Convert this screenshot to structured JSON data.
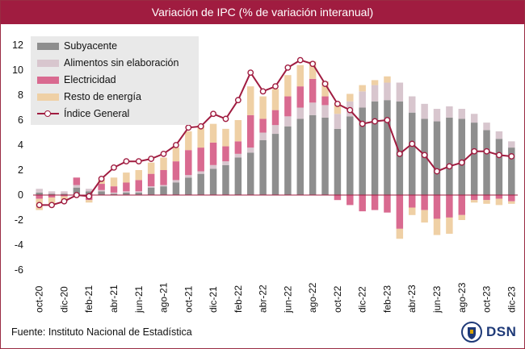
{
  "title": "Variación de IPC (% de variación interanual)",
  "source": "Fuente: Instituto Nacional de Estadística",
  "logo_text": "DSN",
  "colors": {
    "subyacente": "#8e8e8e",
    "alimentos": "#d8c6ce",
    "electricidad": "#d96a90",
    "energia": "#efd0a5",
    "indice": "#a01c40"
  },
  "chart_data": {
    "type": "bar",
    "stacked": true,
    "ylim": [
      -6,
      12
    ],
    "yticks": [
      -6,
      -4,
      -2,
      0,
      2,
      4,
      6,
      8,
      10,
      12
    ],
    "grid": false,
    "legend_position": "top-left",
    "categories": [
      "oct-20",
      "nov-20",
      "dic-20",
      "ene-21",
      "feb-21",
      "mar-21",
      "abr-21",
      "may-21",
      "jun-21",
      "jul-21",
      "ago-21",
      "sep-21",
      "oct-21",
      "nov-21",
      "dic-21",
      "ene-22",
      "feb-22",
      "mar-22",
      "abr-22",
      "may-22",
      "jun-22",
      "jul-22",
      "ago-22",
      "sep-22",
      "oct-22",
      "nov-22",
      "dic-22",
      "ene-23",
      "feb-23",
      "mar-23",
      "abr-23",
      "may-23",
      "jun-23",
      "jul-23",
      "ago-23",
      "sep-23",
      "oct-23",
      "nov-23",
      "dic-23"
    ],
    "xtick_labels": [
      "oct-20",
      "dic-20",
      "feb-21",
      "abr-21",
      "jun-21",
      "ago-21",
      "oct-21",
      "dic-21",
      "feb-22",
      "abr-22",
      "jun-22",
      "ago-22",
      "oct-22",
      "dic-22",
      "feb-23",
      "abr-23",
      "jun-23",
      "ago-23",
      "oct-23",
      "dic-23"
    ],
    "series": [
      {
        "name": "Subyacente",
        "key": "subyacente",
        "values": [
          0.2,
          0.1,
          0.1,
          0.6,
          0.3,
          0.3,
          0.1,
          0.2,
          0.2,
          0.6,
          0.7,
          1.0,
          1.4,
          1.7,
          2.1,
          2.4,
          3.0,
          3.4,
          4.4,
          4.9,
          5.5,
          6.1,
          6.4,
          6.2,
          5.3,
          6.3,
          7.0,
          7.5,
          7.6,
          7.5,
          6.6,
          6.1,
          5.9,
          6.2,
          6.1,
          5.8,
          5.2,
          4.5,
          3.8
        ]
      },
      {
        "name": "Alimentos sin elaboración",
        "key": "alimentos",
        "values": [
          0.3,
          0.2,
          0.2,
          0.2,
          0.2,
          0.1,
          0.1,
          0.1,
          0.1,
          0.1,
          0.1,
          0.2,
          0.2,
          0.2,
          0.3,
          0.3,
          0.3,
          0.4,
          0.6,
          0.7,
          0.8,
          0.9,
          1.0,
          1.0,
          1.2,
          1.2,
          1.3,
          1.3,
          1.4,
          1.5,
          1.3,
          1.2,
          1.0,
          0.9,
          0.8,
          0.7,
          0.6,
          0.6,
          0.5
        ]
      },
      {
        "name": "Electricidad",
        "key": "electricidad",
        "values": [
          -0.3,
          -0.2,
          -0.1,
          0.6,
          -0.4,
          0.5,
          0.5,
          0.7,
          0.9,
          1.0,
          1.2,
          1.5,
          2.0,
          1.9,
          1.8,
          1.2,
          1.0,
          2.6,
          1.1,
          1.2,
          1.6,
          1.7,
          1.9,
          0.7,
          -0.4,
          -0.8,
          -1.3,
          -1.2,
          -1.4,
          -2.7,
          -1.0,
          -1.2,
          -1.9,
          -1.8,
          -1.6,
          -0.4,
          -0.4,
          -0.3,
          -0.5
        ]
      },
      {
        "name": "Resto de energía",
        "key": "energia",
        "values": [
          -0.9,
          -0.6,
          -0.4,
          -0.1,
          -0.2,
          0.3,
          0.7,
          0.8,
          0.8,
          0.9,
          1.0,
          1.1,
          1.5,
          1.8,
          1.5,
          1.4,
          1.7,
          2.3,
          1.8,
          1.7,
          1.7,
          1.7,
          1.4,
          1.2,
          0.9,
          0.6,
          0.5,
          0.4,
          0.5,
          -0.8,
          -0.6,
          -1.0,
          -1.3,
          -1.3,
          -0.4,
          -0.2,
          -0.3,
          -0.5,
          -0.2
        ]
      }
    ],
    "line": {
      "name": "Índice General",
      "key": "indice",
      "values": [
        -0.8,
        -0.8,
        -0.5,
        0.0,
        -0.1,
        1.3,
        2.2,
        2.7,
        2.7,
        2.9,
        3.3,
        4.0,
        5.4,
        5.5,
        6.5,
        6.1,
        7.6,
        9.8,
        8.3,
        8.7,
        10.2,
        10.8,
        10.5,
        8.9,
        7.3,
        6.8,
        5.7,
        5.9,
        6.0,
        3.3,
        4.1,
        3.2,
        1.9,
        2.3,
        2.6,
        3.5,
        3.5,
        3.2,
        3.1
      ]
    }
  }
}
